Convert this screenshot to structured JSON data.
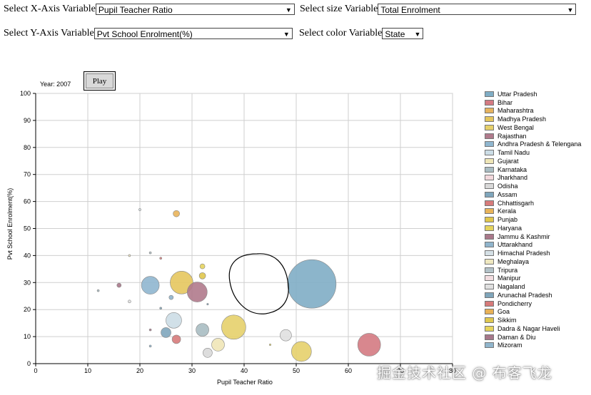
{
  "controls": {
    "x_label": "Select X-Axis Variable",
    "x_value": "Pupil Teacher Ratio",
    "size_label": "Select size Variable",
    "size_value": "Total Enrolment",
    "y_label": "Select Y-Axis Variable",
    "y_value": "Pvt School Enrolment(%)",
    "color_label": "Select color Variable",
    "color_value": "State"
  },
  "play_label": "Play",
  "year_label": "Year: 2007",
  "watermark": "掘金技术社区 @ 布客飞龙",
  "chart_data": {
    "type": "scatter",
    "xlabel": "Pupil Teacher Ratio",
    "ylabel": "Pvt School Enrolment(%)",
    "xlim": [
      0,
      80
    ],
    "ylim": [
      0,
      100
    ],
    "x_ticks": [
      "0",
      "10",
      "20",
      "30",
      "40",
      "50",
      "60",
      "70",
      "80"
    ],
    "y_ticks": [
      "0",
      "10",
      "20",
      "30",
      "40",
      "50",
      "60",
      "70",
      "80",
      "90",
      "100"
    ],
    "grid": true,
    "legend": "right",
    "legend_entries": [
      {
        "name": "Uttar Pradesh",
        "color": "#7fadc5"
      },
      {
        "name": "Bihar",
        "color": "#d47a82"
      },
      {
        "name": "Maharashtra",
        "color": "#e6b35f"
      },
      {
        "name": "Madhya Pradesh",
        "color": "#e5c65e"
      },
      {
        "name": "West Bengal",
        "color": "#e6d06b"
      },
      {
        "name": "Rajasthan",
        "color": "#b07a8c"
      },
      {
        "name": "Andhra Pradesh & Telengana",
        "color": "#8fb6cf"
      },
      {
        "name": "Tamil Nadu",
        "color": "#ccdde6"
      },
      {
        "name": "Gujarat",
        "color": "#efe6b7"
      },
      {
        "name": "Karnataka",
        "color": "#a9bcc2"
      },
      {
        "name": "Jharkhand",
        "color": "#f3d8dc"
      },
      {
        "name": "Odisha",
        "color": "#d9d9d9"
      },
      {
        "name": "Assam",
        "color": "#7fa6bc"
      },
      {
        "name": "Chhattisgarh",
        "color": "#d77b7b"
      },
      {
        "name": "Kerala",
        "color": "#e9b45a"
      },
      {
        "name": "Punjab",
        "color": "#e0c64c"
      },
      {
        "name": "Haryana",
        "color": "#e5d45e"
      },
      {
        "name": "Jammu & Kashmir",
        "color": "#a9788a"
      },
      {
        "name": "Uttarakhand",
        "color": "#8fb4cc"
      },
      {
        "name": "Himachal Pradesh",
        "color": "#d5e0e6"
      },
      {
        "name": "Meghalaya",
        "color": "#efe8c0"
      },
      {
        "name": "Tripura",
        "color": "#b3c2c8"
      },
      {
        "name": "Manipur",
        "color": "#f3dde0"
      },
      {
        "name": "Nagaland",
        "color": "#e0e0e0"
      },
      {
        "name": "Arunachal Pradesh",
        "color": "#7fa5ba"
      },
      {
        "name": "Pondicherry",
        "color": "#d67a7a"
      },
      {
        "name": "Goa",
        "color": "#e8b157"
      },
      {
        "name": "Sikkim",
        "color": "#dfc850"
      },
      {
        "name": "Dadra & Nagar Haveli",
        "color": "#e6d45c"
      },
      {
        "name": "Daman & Diu",
        "color": "#a6778a"
      },
      {
        "name": "Mizoram",
        "color": "#90b5cc"
      }
    ],
    "points": [
      {
        "x": 53,
        "y": 29.5,
        "size": 34,
        "color": "#7fadc5"
      },
      {
        "x": 64,
        "y": 7,
        "size": 16,
        "color": "#d47a82"
      },
      {
        "x": 28,
        "y": 30,
        "size": 16,
        "color": "#e5c65e"
      },
      {
        "x": 38,
        "y": 13.5,
        "size": 17,
        "color": "#e6d06b"
      },
      {
        "x": 51,
        "y": 4.5,
        "size": 14,
        "color": "#e6d06b"
      },
      {
        "x": 31,
        "y": 26.5,
        "size": 14,
        "color": "#b07a8c"
      },
      {
        "x": 22,
        "y": 29,
        "size": 12.5,
        "color": "#8fb6cf"
      },
      {
        "x": 26.5,
        "y": 16,
        "size": 11,
        "color": "#ccdde6"
      },
      {
        "x": 35,
        "y": 7,
        "size": 9,
        "color": "#efe6b7"
      },
      {
        "x": 32,
        "y": 12.5,
        "size": 9,
        "color": "#a9bcc2"
      },
      {
        "x": 48,
        "y": 10.5,
        "size": 8,
        "color": "#e0e0e0"
      },
      {
        "x": 33,
        "y": 4,
        "size": 6.5,
        "color": "#d9d9d9"
      },
      {
        "x": 25,
        "y": 11.5,
        "size": 7,
        "color": "#7fa6bc"
      },
      {
        "x": 27,
        "y": 9,
        "size": 6,
        "color": "#d77b7b"
      },
      {
        "x": 27,
        "y": 55.5,
        "size": 4.5,
        "color": "#e9b45a"
      },
      {
        "x": 32,
        "y": 36,
        "size": 3.5,
        "color": "#e5d45e"
      },
      {
        "x": 32,
        "y": 32.5,
        "size": 4.5,
        "color": "#e0c64c"
      },
      {
        "x": 16,
        "y": 29,
        "size": 3,
        "color": "#a9788a"
      },
      {
        "x": 26,
        "y": 24.5,
        "size": 3,
        "color": "#8fb4cc"
      },
      {
        "x": 20,
        "y": 57,
        "size": 1.5,
        "color": "#d5e0e6"
      },
      {
        "x": 18,
        "y": 40,
        "size": 1.5,
        "color": "#efe8c0"
      },
      {
        "x": 22,
        "y": 41,
        "size": 1.5,
        "color": "#b3c2c8"
      },
      {
        "x": 18,
        "y": 23,
        "size": 2,
        "color": "#e0e0e0"
      },
      {
        "x": 12,
        "y": 27,
        "size": 1.5,
        "color": "#a9bcc2"
      },
      {
        "x": 24,
        "y": 39,
        "size": 1.5,
        "color": "#d67a7a"
      },
      {
        "x": 22,
        "y": 12.5,
        "size": 1.5,
        "color": "#a6778a"
      },
      {
        "x": 24,
        "y": 20.5,
        "size": 1.5,
        "color": "#7fa5ba"
      },
      {
        "x": 22,
        "y": 6.5,
        "size": 1.5,
        "color": "#90b5cc"
      },
      {
        "x": 45,
        "y": 7,
        "size": 1.2,
        "color": "#e6d45c"
      },
      {
        "x": 33,
        "y": 22,
        "size": 1.2,
        "color": "#7fa5ba"
      }
    ]
  }
}
